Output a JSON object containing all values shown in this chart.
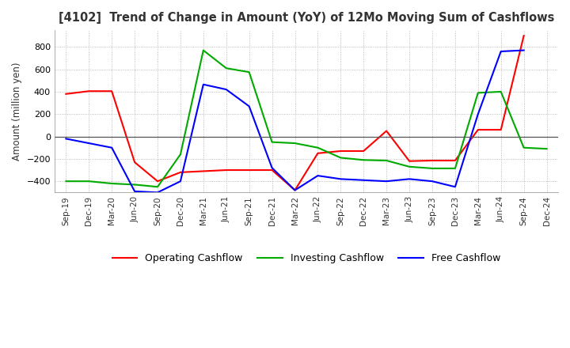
{
  "title": "[4102]  Trend of Change in Amount (YoY) of 12Mo Moving Sum of Cashflows",
  "ylabel": "Amount (million yen)",
  "ylim": [
    -500,
    950
  ],
  "yticks": [
    -400,
    -200,
    0,
    200,
    400,
    600,
    800
  ],
  "background_color": "#ffffff",
  "plot_bg_color": "#ffffff",
  "grid_color": "#aaaaaa",
  "x_labels": [
    "Sep-19",
    "Dec-19",
    "Mar-20",
    "Jun-20",
    "Sep-20",
    "Dec-20",
    "Mar-21",
    "Jun-21",
    "Sep-21",
    "Dec-21",
    "Mar-22",
    "Jun-22",
    "Sep-22",
    "Dec-22",
    "Mar-23",
    "Jun-23",
    "Sep-23",
    "Dec-23",
    "Mar-24",
    "Jun-24",
    "Sep-24",
    "Dec-24"
  ],
  "operating": [
    380,
    405,
    405,
    -230,
    -400,
    -320,
    -310,
    -300,
    -300,
    -300,
    -480,
    -150,
    -130,
    -130,
    50,
    -220,
    -215,
    -215,
    60,
    60,
    900,
    null
  ],
  "investing": [
    -400,
    -400,
    -420,
    -430,
    -450,
    -160,
    770,
    610,
    575,
    -50,
    -60,
    -100,
    -190,
    -210,
    -215,
    -270,
    -285,
    -285,
    390,
    400,
    -100,
    -110
  ],
  "free": [
    -20,
    -60,
    -100,
    -490,
    -500,
    -400,
    465,
    420,
    270,
    -280,
    -480,
    -350,
    -380,
    -390,
    -400,
    -380,
    -400,
    -450,
    200,
    760,
    770,
    null
  ],
  "line_colors": {
    "operating": "#ff0000",
    "investing": "#00aa00",
    "free": "#0000ff"
  },
  "legend_labels": [
    "Operating Cashflow",
    "Investing Cashflow",
    "Free Cashflow"
  ]
}
